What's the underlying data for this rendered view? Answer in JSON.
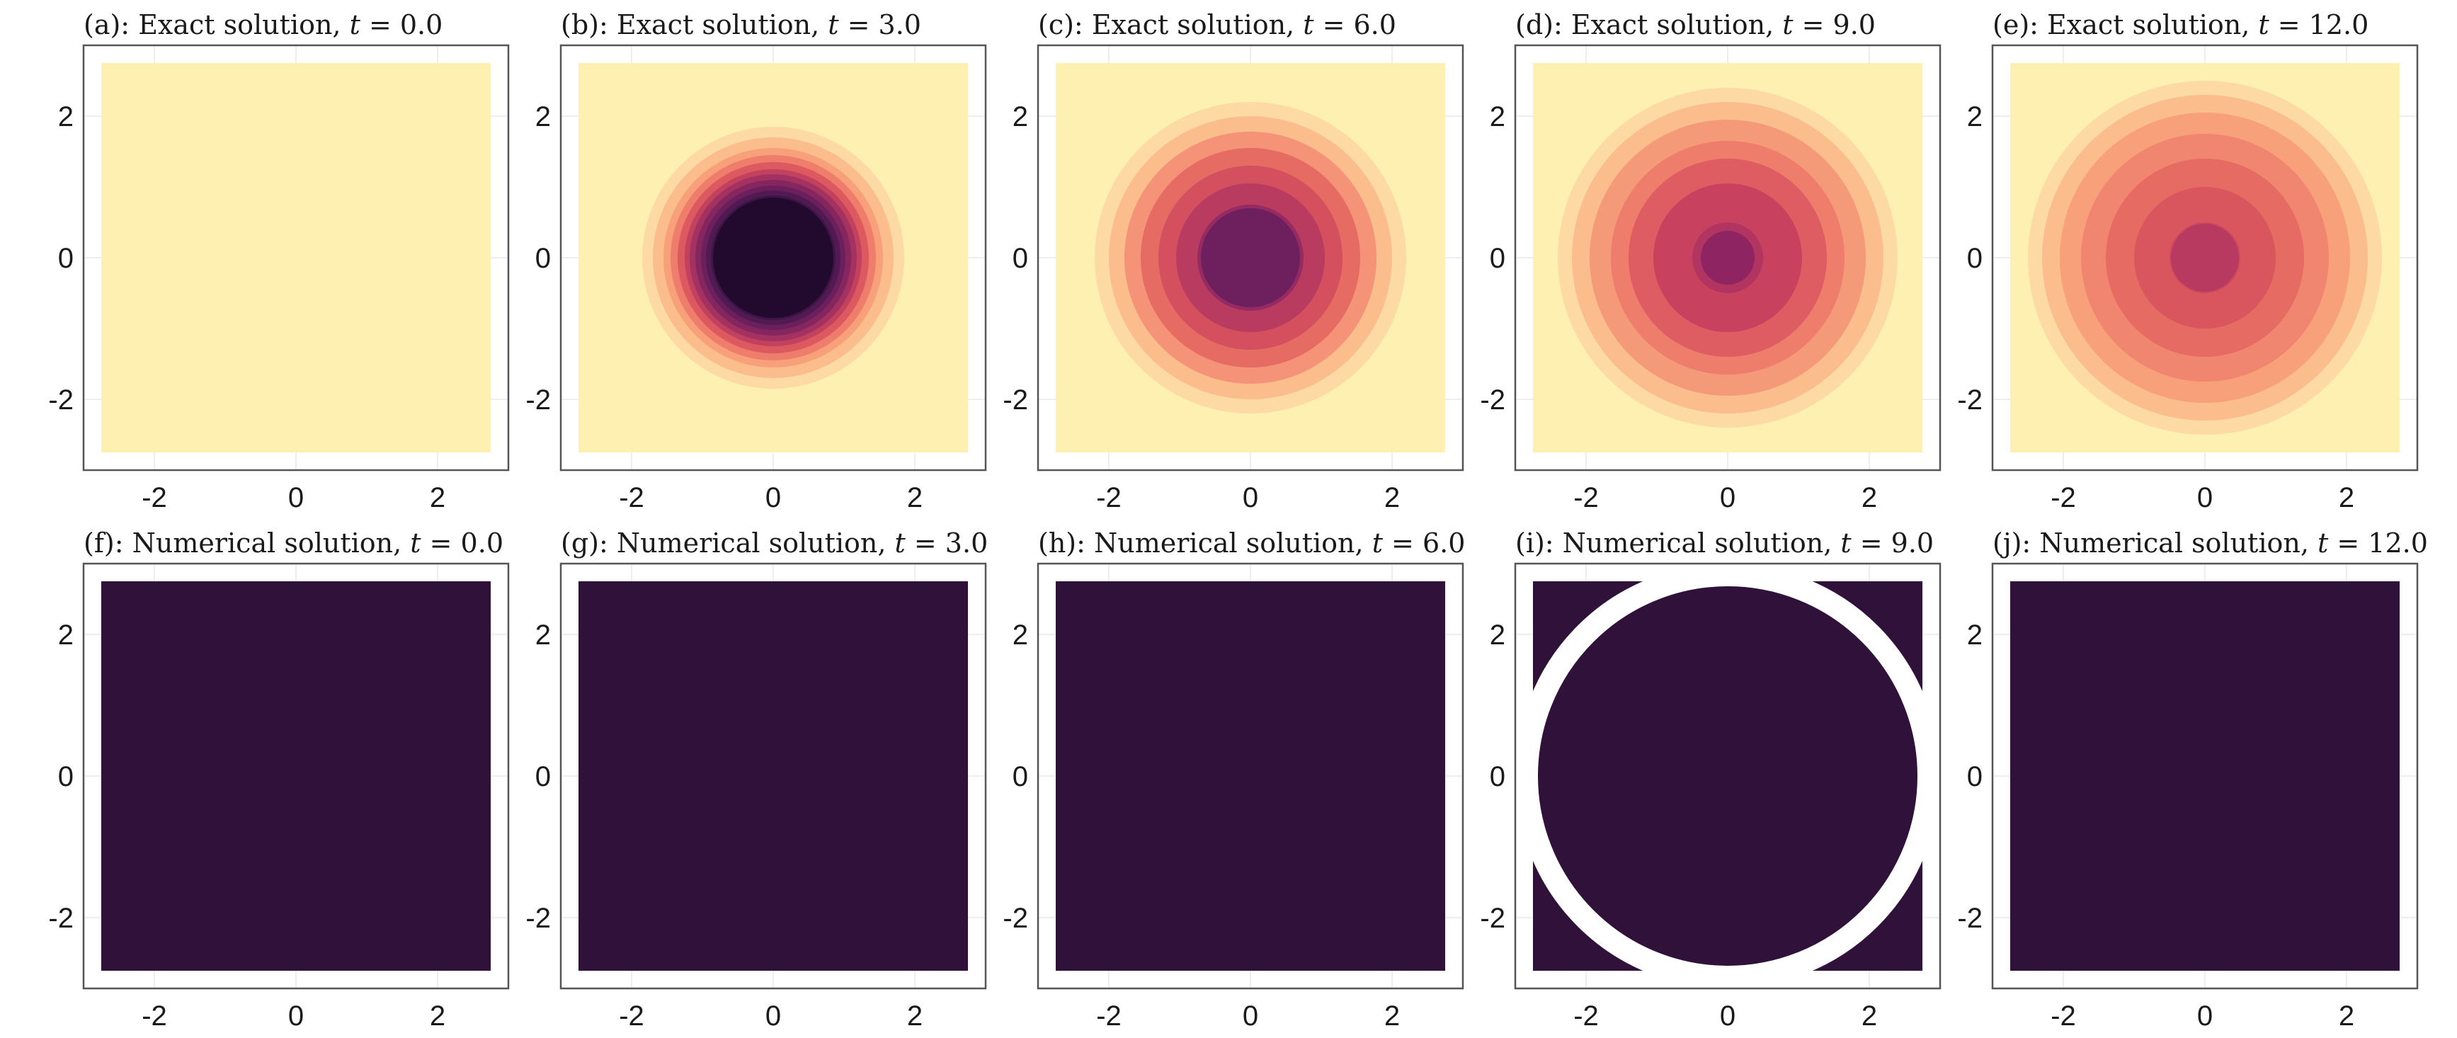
{
  "chart_data": {
    "type": "heatmap",
    "layout": {
      "rows": 2,
      "cols": 5
    },
    "x_ticks": [
      -2,
      0,
      2
    ],
    "y_ticks": [
      -2,
      0,
      2
    ],
    "xlim": [
      -3.0,
      3.0
    ],
    "ylim": [
      -3.0,
      3.0
    ],
    "domain_extent": [
      -2.75,
      2.75
    ],
    "grid": true,
    "colors": {
      "background": "#fdf0b0",
      "numerical_fill": "#2f1139",
      "ring_gap": "#ffffff",
      "palette": [
        "#fddaa3",
        "#fbbd8b",
        "#f7a07a",
        "#f18670",
        "#e66b62",
        "#d9565e",
        "#c8425f",
        "#b13461",
        "#962a63",
        "#7a2462",
        "#5f1d5a",
        "#45174d",
        "#30113d",
        "#220a2f"
      ]
    },
    "panels": [
      {
        "label": "(a): Exact solution, ",
        "tvar": "t",
        "tval": " = 0.0",
        "kind": "exact",
        "rings": []
      },
      {
        "label": "(b): Exact solution, ",
        "tvar": "t",
        "tval": " = 3.0",
        "kind": "exact",
        "rings": [
          {
            "r": 1.85,
            "c": "#fddaa3"
          },
          {
            "r": 1.7,
            "c": "#fbbd8b"
          },
          {
            "r": 1.55,
            "c": "#f7a07a"
          },
          {
            "r": 1.45,
            "c": "#ee7d6b"
          },
          {
            "r": 1.35,
            "c": "#dc5960"
          },
          {
            "r": 1.25,
            "c": "#c1415f"
          },
          {
            "r": 1.18,
            "c": "#a33261"
          },
          {
            "r": 1.1,
            "c": "#86265f"
          },
          {
            "r": 1.02,
            "c": "#6b1f5c"
          },
          {
            "r": 0.95,
            "c": "#521a53"
          },
          {
            "r": 0.88,
            "c": "#3e1548"
          },
          {
            "r": 0.85,
            "c": "#220a2f"
          }
        ]
      },
      {
        "label": "(c): Exact solution, ",
        "tvar": "t",
        "tval": " = 6.0",
        "kind": "exact",
        "rings": [
          {
            "r": 2.2,
            "c": "#fddaa3"
          },
          {
            "r": 2.0,
            "c": "#fbbd8b"
          },
          {
            "r": 1.78,
            "c": "#f49378"
          },
          {
            "r": 1.55,
            "c": "#e66b62"
          },
          {
            "r": 1.3,
            "c": "#d4505f"
          },
          {
            "r": 1.05,
            "c": "#b93b60"
          },
          {
            "r": 0.75,
            "c": "#962a63"
          },
          {
            "r": 0.7,
            "c": "#6e1f5e"
          }
        ]
      },
      {
        "label": "(d): Exact solution, ",
        "tvar": "t",
        "tval": " = 9.0",
        "kind": "exact",
        "rings": [
          {
            "r": 2.4,
            "c": "#fddaa3"
          },
          {
            "r": 2.2,
            "c": "#fbbd8b"
          },
          {
            "r": 1.95,
            "c": "#f49a78"
          },
          {
            "r": 1.65,
            "c": "#ee7d6b"
          },
          {
            "r": 1.4,
            "c": "#de5d62"
          },
          {
            "r": 1.05,
            "c": "#c8425f"
          },
          {
            "r": 0.5,
            "c": "#b13461"
          },
          {
            "r": 0.38,
            "c": "#8e2461"
          }
        ]
      },
      {
        "label": "(e): Exact solution, ",
        "tvar": "t",
        "tval": " = 12.0",
        "kind": "exact",
        "rings": [
          {
            "r": 2.5,
            "c": "#fddaa3"
          },
          {
            "r": 2.3,
            "c": "#fbbd8b"
          },
          {
            "r": 2.05,
            "c": "#f7a07a"
          },
          {
            "r": 1.75,
            "c": "#f18670"
          },
          {
            "r": 1.4,
            "c": "#e66b62"
          },
          {
            "r": 1.0,
            "c": "#d9565e"
          },
          {
            "r": 0.5,
            "c": "#cc4760"
          },
          {
            "r": 0.48,
            "c": "#b83a60"
          }
        ]
      },
      {
        "label": "(f): Numerical solution, ",
        "tvar": "t",
        "tval": " = 0.0",
        "kind": "numerical",
        "ring_gap": null
      },
      {
        "label": "(g): Numerical solution, ",
        "tvar": "t",
        "tval": " = 3.0",
        "kind": "numerical",
        "ring_gap": null
      },
      {
        "label": "(h): Numerical solution, ",
        "tvar": "t",
        "tval": " = 6.0",
        "kind": "numerical",
        "ring_gap": null
      },
      {
        "label": "(i): Numerical solution, ",
        "tvar": "t",
        "tval": " = 9.0",
        "kind": "numerical",
        "ring_gap": {
          "r_inner": 2.68,
          "r_outer": 3.0
        }
      },
      {
        "label": "(j): Numerical solution, ",
        "tvar": "t",
        "tval": " = 12.0",
        "kind": "numerical",
        "ring_gap": null
      }
    ]
  }
}
